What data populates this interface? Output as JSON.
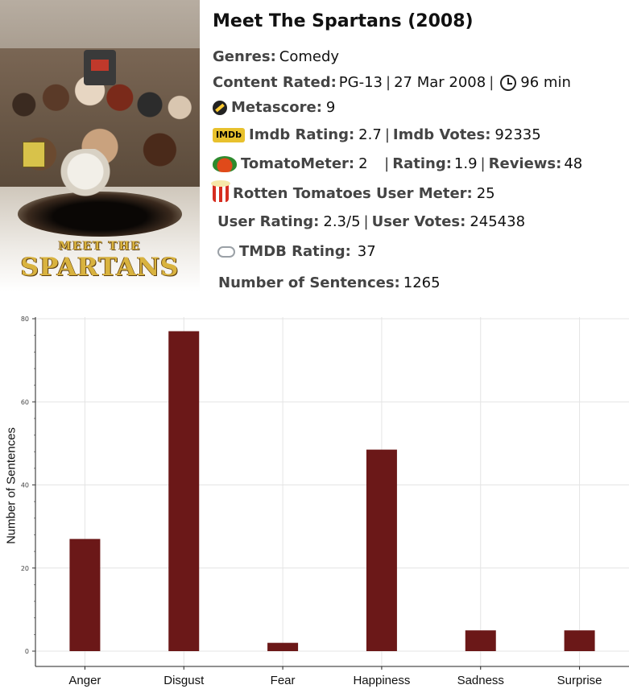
{
  "movie": {
    "title": "Meet The Spartans (2008)",
    "poster": {
      "logo_line1": "MEET THE",
      "logo_line2": "SPARTANS"
    },
    "genres_label": "Genres:",
    "genres_value": "Comedy",
    "content_rated_label": "Content Rated:",
    "content_rated_value": "PG-13",
    "release_date": "27 Mar 2008",
    "runtime": "96 min",
    "metascore_label": "Metascore:",
    "metascore_value": "9",
    "imdb_rating_label": "Imdb Rating:",
    "imdb_rating_value": "2.7",
    "imdb_votes_label": "Imdb Votes:",
    "imdb_votes_value": "92335",
    "tomatometer_label": "TomatoMeter:",
    "tomatometer_value": "2",
    "rt_rating_label": "Rating:",
    "rt_rating_value": "1.9",
    "reviews_label": "Reviews:",
    "reviews_value": "48",
    "rt_user_meter_label": "Rotten Tomatoes User Meter:",
    "rt_user_meter_value": "25",
    "user_rating_label": "User Rating:",
    "user_rating_value": "2.3/5",
    "user_votes_label": "User Votes:",
    "user_votes_value": "245438",
    "tmdb_rating_label": "TMDB Rating:",
    "tmdb_rating_value": "37",
    "sentences_label": "Number of Sentences:",
    "sentences_value": "1265",
    "icons": [
      "metacritic-icon",
      "imdb-icon",
      "tomato-icon",
      "popcorn-icon",
      "tmdb-icon",
      "clock-icon"
    ],
    "imdb_badge_text": "IMDb"
  },
  "chart_data": {
    "type": "bar",
    "categories": [
      "Anger",
      "Disgust",
      "Fear",
      "Happiness",
      "Sadness",
      "Surprise"
    ],
    "values": [
      27,
      77,
      2,
      48.5,
      5,
      5
    ],
    "ylabel": "Number of Sentences",
    "xlabel": "",
    "ylim": [
      0,
      80
    ],
    "yticks": [
      0,
      20,
      40,
      60,
      80
    ],
    "ytick_labels": [
      "0",
      "20",
      "40",
      "60",
      "80"
    ],
    "bar_color": "#6b1818",
    "grid": true
  }
}
